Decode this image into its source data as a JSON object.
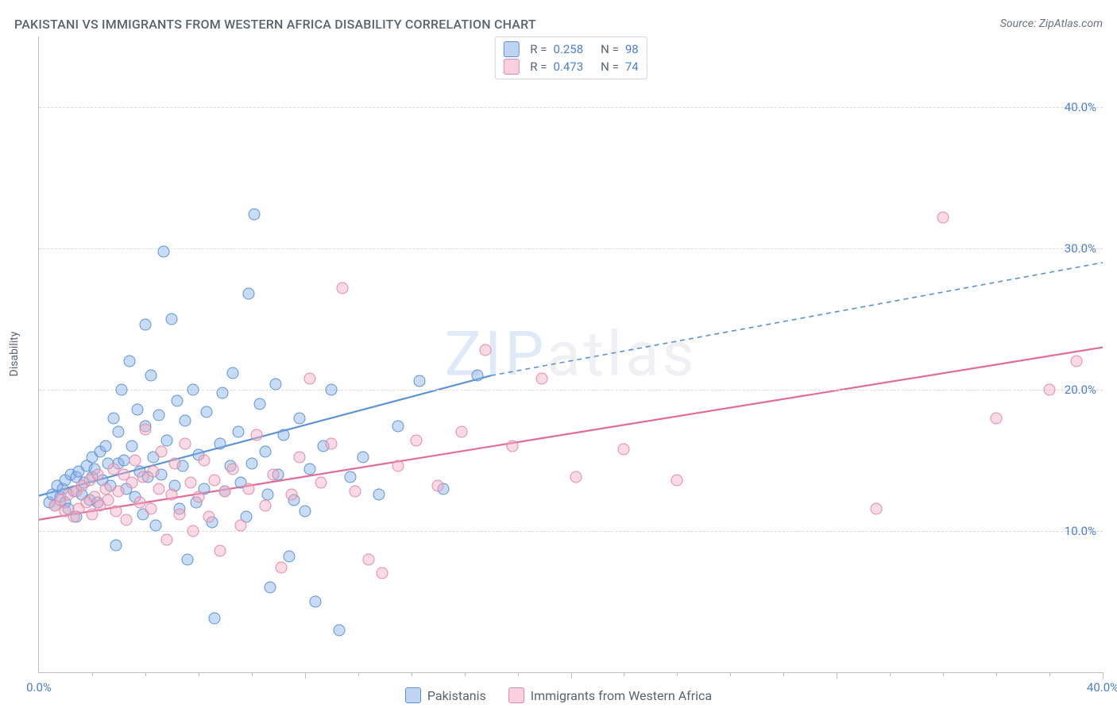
{
  "header": {
    "title": "PAKISTANI VS IMMIGRANTS FROM WESTERN AFRICA DISABILITY CORRELATION CHART",
    "source_label": "Source:",
    "source_name": "ZipAtlas.com"
  },
  "ylabel": "Disability",
  "watermark": {
    "bold": "ZIP",
    "thin": "atlas"
  },
  "chart": {
    "type": "scatter",
    "background_color": "#ffffff",
    "grid_color": "#d9d9d9",
    "axis_color": "#bdbdbd",
    "tick_color": "#4b7dd6",
    "xlim": [
      0,
      40
    ],
    "ylim": [
      0,
      45
    ],
    "yticks": [
      {
        "v": 10,
        "label": "10.0%"
      },
      {
        "v": 20,
        "label": "20.0%"
      },
      {
        "v": 30,
        "label": "30.0%"
      },
      {
        "v": 40,
        "label": "40.0%"
      }
    ],
    "xticks_labeled": [
      {
        "v": 0,
        "label": "0.0%"
      },
      {
        "v": 40,
        "label": "40.0%"
      }
    ],
    "xticks_major": [
      10,
      20,
      30,
      40
    ],
    "xticks_minor": [
      2,
      4,
      6,
      8,
      12,
      14,
      16,
      18,
      22,
      24,
      26,
      28,
      32,
      34,
      36,
      38
    ],
    "top_legend": [
      {
        "swatch": "b",
        "r_label": "R =",
        "r": "0.258",
        "n_label": "N =",
        "n": "98"
      },
      {
        "swatch": "p",
        "r_label": "R =",
        "r": "0.473",
        "n_label": "N =",
        "n": "74"
      }
    ],
    "bottom_legend": [
      {
        "swatch": "b",
        "label": "Pakistanis"
      },
      {
        "swatch": "p",
        "label": "Immigrants from Western Africa"
      }
    ],
    "series": [
      {
        "key": "pakistanis",
        "color": "#5e92d6",
        "fill": "rgba(136,177,232,0.45)",
        "trend": {
          "x1": 0,
          "y1": 12.5,
          "x2": 17,
          "y2": 21.0,
          "style": "solid",
          "width": 2.2
        },
        "trend_ext": {
          "x1": 17,
          "y1": 21.0,
          "x2": 40,
          "y2": 29.0,
          "style": "dashed",
          "width": 1.6
        },
        "points": [
          [
            0.4,
            12.0
          ],
          [
            0.5,
            12.6
          ],
          [
            0.6,
            11.8
          ],
          [
            0.7,
            13.2
          ],
          [
            0.8,
            12.4
          ],
          [
            0.9,
            13.0
          ],
          [
            1.0,
            12.0
          ],
          [
            1.0,
            13.6
          ],
          [
            1.1,
            11.6
          ],
          [
            1.2,
            14.0
          ],
          [
            1.3,
            12.8
          ],
          [
            1.4,
            13.8
          ],
          [
            1.4,
            11.0
          ],
          [
            1.5,
            14.2
          ],
          [
            1.6,
            12.6
          ],
          [
            1.7,
            13.4
          ],
          [
            1.8,
            14.6
          ],
          [
            1.9,
            12.2
          ],
          [
            2.0,
            15.2
          ],
          [
            2.0,
            13.8
          ],
          [
            2.1,
            14.4
          ],
          [
            2.2,
            12.0
          ],
          [
            2.3,
            15.6
          ],
          [
            2.4,
            13.6
          ],
          [
            2.5,
            16.0
          ],
          [
            2.6,
            14.8
          ],
          [
            2.7,
            13.2
          ],
          [
            2.8,
            18.0
          ],
          [
            2.9,
            9.0
          ],
          [
            3.0,
            17.0
          ],
          [
            3.0,
            14.8
          ],
          [
            3.1,
            20.0
          ],
          [
            3.2,
            15.0
          ],
          [
            3.3,
            13.0
          ],
          [
            3.4,
            22.0
          ],
          [
            3.5,
            16.0
          ],
          [
            3.6,
            12.4
          ],
          [
            3.7,
            18.6
          ],
          [
            3.8,
            14.2
          ],
          [
            3.9,
            11.2
          ],
          [
            4.0,
            24.6
          ],
          [
            4.0,
            17.4
          ],
          [
            4.1,
            13.8
          ],
          [
            4.2,
            21.0
          ],
          [
            4.3,
            15.2
          ],
          [
            4.4,
            10.4
          ],
          [
            4.5,
            18.2
          ],
          [
            4.6,
            14.0
          ],
          [
            4.7,
            29.8
          ],
          [
            4.8,
            16.4
          ],
          [
            5.0,
            25.0
          ],
          [
            5.1,
            13.2
          ],
          [
            5.2,
            19.2
          ],
          [
            5.3,
            11.6
          ],
          [
            5.4,
            14.6
          ],
          [
            5.5,
            17.8
          ],
          [
            5.6,
            8.0
          ],
          [
            5.8,
            20.0
          ],
          [
            5.9,
            12.0
          ],
          [
            6.0,
            15.4
          ],
          [
            6.2,
            13.0
          ],
          [
            6.3,
            18.4
          ],
          [
            6.5,
            10.6
          ],
          [
            6.6,
            3.8
          ],
          [
            6.8,
            16.2
          ],
          [
            6.9,
            19.8
          ],
          [
            7.0,
            12.8
          ],
          [
            7.2,
            14.6
          ],
          [
            7.3,
            21.2
          ],
          [
            7.5,
            17.0
          ],
          [
            7.6,
            13.4
          ],
          [
            7.8,
            11.0
          ],
          [
            7.9,
            26.8
          ],
          [
            8.0,
            14.8
          ],
          [
            8.1,
            32.4
          ],
          [
            8.3,
            19.0
          ],
          [
            8.5,
            15.6
          ],
          [
            8.6,
            12.6
          ],
          [
            8.7,
            6.0
          ],
          [
            8.9,
            20.4
          ],
          [
            9.0,
            14.0
          ],
          [
            9.2,
            16.8
          ],
          [
            9.4,
            8.2
          ],
          [
            9.6,
            12.2
          ],
          [
            9.8,
            18.0
          ],
          [
            10.0,
            11.4
          ],
          [
            10.2,
            14.4
          ],
          [
            10.4,
            5.0
          ],
          [
            10.7,
            16.0
          ],
          [
            11.0,
            20.0
          ],
          [
            11.3,
            3.0
          ],
          [
            11.7,
            13.8
          ],
          [
            12.2,
            15.2
          ],
          [
            12.8,
            12.6
          ],
          [
            13.5,
            17.4
          ],
          [
            14.3,
            20.6
          ],
          [
            15.2,
            13.0
          ],
          [
            16.5,
            21.0
          ]
        ]
      },
      {
        "key": "w_africa",
        "color": "#e46c94",
        "fill": "rgba(244,172,194,0.45)",
        "trend": {
          "x1": 0,
          "y1": 10.8,
          "x2": 40,
          "y2": 23.0,
          "style": "solid",
          "width": 2.2
        },
        "points": [
          [
            0.6,
            11.8
          ],
          [
            0.8,
            12.2
          ],
          [
            1.0,
            11.4
          ],
          [
            1.1,
            12.6
          ],
          [
            1.3,
            11.0
          ],
          [
            1.4,
            12.8
          ],
          [
            1.5,
            11.6
          ],
          [
            1.6,
            13.2
          ],
          [
            1.8,
            12.0
          ],
          [
            1.9,
            13.6
          ],
          [
            2.0,
            11.2
          ],
          [
            2.1,
            12.4
          ],
          [
            2.2,
            14.0
          ],
          [
            2.3,
            11.8
          ],
          [
            2.5,
            13.0
          ],
          [
            2.6,
            12.2
          ],
          [
            2.8,
            14.4
          ],
          [
            2.9,
            11.4
          ],
          [
            3.0,
            12.8
          ],
          [
            3.2,
            14.0
          ],
          [
            3.3,
            10.8
          ],
          [
            3.5,
            13.4
          ],
          [
            3.6,
            15.0
          ],
          [
            3.8,
            12.0
          ],
          [
            3.9,
            13.8
          ],
          [
            4.0,
            17.2
          ],
          [
            4.2,
            11.6
          ],
          [
            4.3,
            14.2
          ],
          [
            4.5,
            13.0
          ],
          [
            4.6,
            15.6
          ],
          [
            4.8,
            9.4
          ],
          [
            5.0,
            12.6
          ],
          [
            5.1,
            14.8
          ],
          [
            5.3,
            11.2
          ],
          [
            5.5,
            16.2
          ],
          [
            5.7,
            13.4
          ],
          [
            5.8,
            10.0
          ],
          [
            6.0,
            12.4
          ],
          [
            6.2,
            15.0
          ],
          [
            6.4,
            11.0
          ],
          [
            6.6,
            13.6
          ],
          [
            6.8,
            8.6
          ],
          [
            7.0,
            12.8
          ],
          [
            7.3,
            14.4
          ],
          [
            7.6,
            10.4
          ],
          [
            7.9,
            13.0
          ],
          [
            8.2,
            16.8
          ],
          [
            8.5,
            11.8
          ],
          [
            8.8,
            14.0
          ],
          [
            9.1,
            7.4
          ],
          [
            9.5,
            12.6
          ],
          [
            9.8,
            15.2
          ],
          [
            10.2,
            20.8
          ],
          [
            10.6,
            13.4
          ],
          [
            11.0,
            16.2
          ],
          [
            11.4,
            27.2
          ],
          [
            11.9,
            12.8
          ],
          [
            12.4,
            8.0
          ],
          [
            12.9,
            7.0
          ],
          [
            13.5,
            14.6
          ],
          [
            14.2,
            16.4
          ],
          [
            15.0,
            13.2
          ],
          [
            15.9,
            17.0
          ],
          [
            16.8,
            22.8
          ],
          [
            17.8,
            16.0
          ],
          [
            18.9,
            20.8
          ],
          [
            20.2,
            13.8
          ],
          [
            22.0,
            15.8
          ],
          [
            24.0,
            13.6
          ],
          [
            31.5,
            11.6
          ],
          [
            34.0,
            32.2
          ],
          [
            36.0,
            18.0
          ],
          [
            38.0,
            20.0
          ],
          [
            39.0,
            22.0
          ]
        ]
      }
    ]
  }
}
